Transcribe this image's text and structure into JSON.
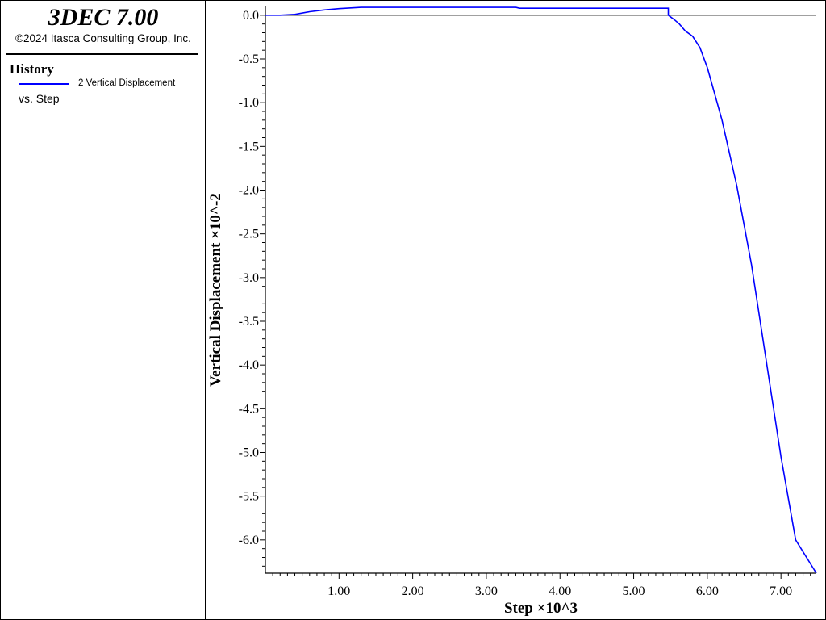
{
  "app": {
    "title": "3DEC 7.00",
    "copyright": "©2024 Itasca Consulting Group, Inc."
  },
  "sidebar": {
    "section_title": "History",
    "legend": {
      "label": "2 Vertical Displacement",
      "color": "#0000ff"
    },
    "vs_label": "vs. Step"
  },
  "chart_data": {
    "type": "line",
    "xlabel": "Step ×10^3",
    "ylabel": "Vertical Displacement ×10^-2",
    "xlim": [
      0,
      7.48
    ],
    "ylim": [
      -6.38,
      0.1
    ],
    "x_ticks": [
      "1.00",
      "2.00",
      "3.00",
      "4.00",
      "5.00",
      "6.00",
      "7.00"
    ],
    "y_ticks": [
      "0.0",
      "-0.5",
      "-1.0",
      "-1.5",
      "-2.0",
      "-2.5",
      "-3.0",
      "-3.5",
      "-4.0",
      "-4.5",
      "-5.0",
      "-5.5",
      "-6.0"
    ],
    "series": [
      {
        "name": "2 Vertical Displacement",
        "color": "#0000ff",
        "x": [
          0.0,
          0.2,
          0.4,
          0.6,
          0.8,
          1.0,
          1.3,
          2.0,
          3.4,
          3.45,
          4.0,
          5.47,
          5.47,
          5.55,
          5.62,
          5.7,
          5.8,
          5.9,
          6.0,
          6.2,
          6.4,
          6.6,
          6.8,
          7.0,
          7.2,
          7.48
        ],
        "y": [
          0.0,
          0.0,
          0.01,
          0.04,
          0.06,
          0.075,
          0.09,
          0.09,
          0.09,
          0.08,
          0.08,
          0.08,
          0.0,
          -0.05,
          -0.1,
          -0.18,
          -0.24,
          -0.37,
          -0.6,
          -1.2,
          -1.95,
          -2.85,
          -3.95,
          -5.05,
          -6.0,
          -6.38
        ]
      }
    ]
  }
}
